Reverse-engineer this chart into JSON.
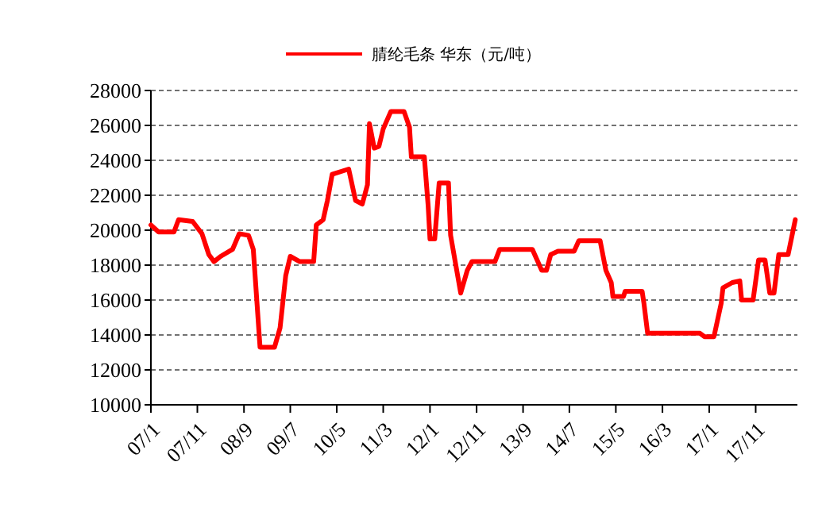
{
  "chart_data": {
    "type": "line",
    "legend": "top",
    "grid": "y",
    "line_style": "solid",
    "marker": "none",
    "x": [
      "2007-01-01",
      "2007-02-20",
      "2007-06-01",
      "2007-07-01",
      "2007-10-01",
      "2007-12-01",
      "2008-01-15",
      "2008-02-18",
      "2008-04-01",
      "2008-06-18",
      "2008-08-01",
      "2008-10-01",
      "2008-11-01",
      "2008-12-15",
      "2009-03-20",
      "2009-04-25",
      "2009-06-01",
      "2009-07-01",
      "2009-09-01",
      "2009-12-01",
      "2009-12-18",
      "2010-02-01",
      "2010-03-01",
      "2010-04-01",
      "2010-07-18",
      "2010-09-01",
      "2010-10-15",
      "2010-11-18",
      "2010-12-01",
      "2011-01-01",
      "2011-02-01",
      "2011-03-01",
      "2011-04-20",
      "2011-07-15",
      "2011-08-20",
      "2011-09-01",
      "2011-11-25",
      "2011-12-20",
      "2012-01-01",
      "2012-02-01",
      "2012-03-01",
      "2012-05-01",
      "2012-05-15",
      "2012-06-18",
      "2012-07-20",
      "2012-09-01",
      "2012-10-01",
      "2013-03-01",
      "2013-04-01",
      "2013-11-01",
      "2014-01-01",
      "2014-02-01",
      "2014-03-01",
      "2014-04-18",
      "2014-08-01",
      "2014-09-01",
      "2015-01-18",
      "2015-02-25",
      "2015-04-01",
      "2015-04-12",
      "2015-06-20",
      "2015-07-01",
      "2015-10-20",
      "2015-11-01",
      "2015-11-25",
      "2016-11-01",
      "2016-12-01",
      "2017-02-01",
      "2017-03-20",
      "2017-04-01",
      "2017-06-01",
      "2017-07-20",
      "2017-08-01",
      "2017-10-15",
      "2017-11-20",
      "2018-01-01",
      "2018-02-01",
      "2018-03-01",
      "2018-04-01",
      "2018-06-01",
      "2018-07-18"
    ],
    "series": [
      {
        "name": "腈纶毛条 华东（元/吨）",
        "color": "#ff0000",
        "values": [
          20300,
          19900,
          19900,
          20600,
          20500,
          19800,
          18600,
          18200,
          18500,
          18900,
          19800,
          19700,
          18900,
          13300,
          13300,
          14400,
          17400,
          18500,
          18200,
          18200,
          20300,
          20600,
          21700,
          23200,
          23500,
          21700,
          21500,
          22600,
          26100,
          24700,
          24800,
          25800,
          26800,
          26800,
          25900,
          24200,
          24200,
          21400,
          19500,
          19500,
          22700,
          22700,
          19700,
          18000,
          16400,
          17700,
          18200,
          18200,
          18900,
          18900,
          17700,
          17700,
          18600,
          18800,
          18800,
          19400,
          19400,
          17700,
          17000,
          16200,
          16200,
          16500,
          16500,
          15800,
          14100,
          14100,
          13900,
          13900,
          15800,
          16700,
          17000,
          17100,
          16000,
          16000,
          18300,
          18300,
          16400,
          16400,
          18600,
          18600,
          20600
        ]
      }
    ],
    "xlim": [
      "2007-01-01",
      "2018-08-01"
    ],
    "xticks": [
      {
        "value": "2007-01-01",
        "label": "07/1"
      },
      {
        "value": "2007-11-01",
        "label": "07/11"
      },
      {
        "value": "2008-09-01",
        "label": "08/9"
      },
      {
        "value": "2009-07-01",
        "label": "09/7"
      },
      {
        "value": "2010-05-01",
        "label": "10/5"
      },
      {
        "value": "2011-03-01",
        "label": "11/3"
      },
      {
        "value": "2012-01-01",
        "label": "12/1"
      },
      {
        "value": "2012-11-01",
        "label": "12/11"
      },
      {
        "value": "2013-09-01",
        "label": "13/9"
      },
      {
        "value": "2014-07-01",
        "label": "14/7"
      },
      {
        "value": "2015-05-01",
        "label": "15/5"
      },
      {
        "value": "2016-03-01",
        "label": "16/3"
      },
      {
        "value": "2017-01-01",
        "label": "17/1"
      },
      {
        "value": "2017-11-01",
        "label": "17/11"
      }
    ],
    "ylim": [
      10000,
      28000
    ],
    "yticks": [
      10000,
      12000,
      14000,
      16000,
      18000,
      20000,
      22000,
      24000,
      26000,
      28000
    ]
  }
}
